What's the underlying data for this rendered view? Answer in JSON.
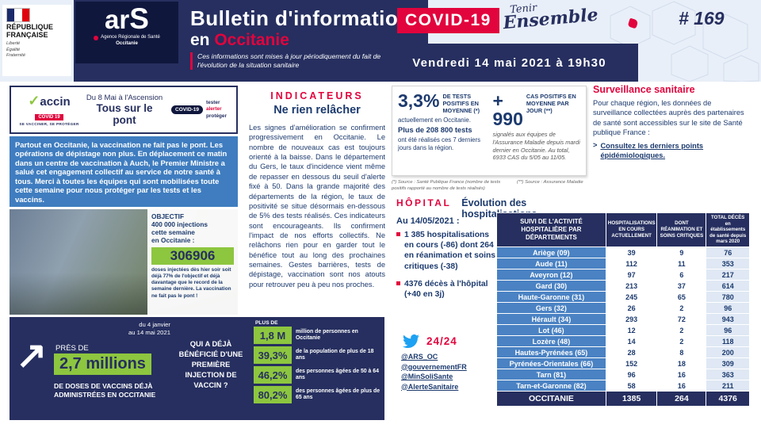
{
  "colors": {
    "navy": "#262f5f",
    "navy-text": "#1c3a6e",
    "red": "#e2043d",
    "green": "#8dc63f",
    "blue": "#3f7dc0",
    "table-blue": "#4a82c3",
    "light-blue": "#e9eff8",
    "twitter-blue": "#1da1f2"
  },
  "icons": {
    "trend_arrow": "↗",
    "check": "✓",
    "link_chevron": ">"
  },
  "header": {
    "republique": {
      "line1": "RÉPUBLIQUE",
      "line2": "FRANÇAISE",
      "motto": "Liberté\nÉgalité\nFraternité"
    },
    "ars": {
      "word_prefix": "ar",
      "word_s": "S",
      "agency": "Agence Régionale de Santé",
      "region": "Occitanie"
    },
    "title": "Bulletin d'information",
    "covid_chip": "COVID-19",
    "tenir_line1": "Tenir",
    "tenir_line2": "Ensemble",
    "en": "en ",
    "region": "Occitanie",
    "subtitle": "Ces informations sont mises à jour périodiquement du fait de l'évolution de la situation sanitaire",
    "issue": "# 169",
    "date": "Vendredi 14 mai 2021 à 19h30"
  },
  "vaccine_banner": {
    "word": "accin",
    "covid_tag": "COVID 19",
    "caption": "SE VACCINER, SE PROTÉGER",
    "line1": "Du 8 Mai à l'Ascension",
    "line2": "Tous sur le pont",
    "badge_pill": "COVID-19",
    "badge_words": [
      "tester",
      "alerter",
      "protéger"
    ]
  },
  "blue_message": "Partout en Occitanie, la vaccination ne fait pas le pont. Les opérations de dépistage non plus. En déplacement ce matin dans un centre de vaccination à Auch, le Premier Ministre a salué cet engagement collectif au service de notre santé à tous. Merci à toutes les équipes qui sont mobilisées toute cette semaine pour nous protéger par les tests et les vaccins.",
  "photo_overlay": {
    "objective": "OBJECTIF\n400 000 injections\ncette semaine\nen Occitanie :",
    "number": "306906",
    "caption": "doses injectées dès hier soir soit déjà 77% de l'objectif et déjà davantage que le record de la semaine dernière. La vaccination ne fait pas le pont !"
  },
  "doses_panel": {
    "period": "du 4 janvier\nau 14 mai 2021",
    "pres_de": "PRÈS DE",
    "big_number": "2,7 millions",
    "caption": "DE DOSES DE VACCINS DÉJÀ ADMINISTRÉES EN OCCITANIE",
    "question": "QUI A DÉJÀ BÉNÉFICIÉ D'UNE PREMIÈRE INJECTION DE VACCIN ?",
    "stats": [
      {
        "prefix": "PLUS DE",
        "value": "1,8 M",
        "label": "million de personnes en Occitanie"
      },
      {
        "value": "39,3%",
        "label": "de la population de plus de 18 ans"
      },
      {
        "value": "46,2%",
        "label": "des personnes âgées de 50 à 64 ans"
      },
      {
        "value": "80,2%",
        "label": "des personnes âgées de plus de 65 ans"
      }
    ]
  },
  "indicateurs": {
    "title": "INDICATEURS",
    "subtitle": "Ne rien relâcher",
    "body": "Les signes d'amélioration se confirment progressivement en Occitanie. Le nombre de nouveaux cas est toujours orienté à la baisse. Dans le département du Gers, le taux d'incidence vient même de repasser en dessous du seuil d'alerte fixé à 50. Dans la grande majorité des départements de la région, le taux de positivité se situe désormais en-dessous de 5% des tests réalisés. Ces indicateurs sont encourageants. Ils confirment l'impact de nos efforts collectifs. Ne relâchons rien pour en garder tout le bénéfice tout au long des prochaines semaines. Gestes barrières, tests de dépistage, vaccination sont nos atouts pour retrouver peu à peu nos proches."
  },
  "tests_box": {
    "left_value": "3,3%",
    "left_label": "DE TESTS POSITIFS EN MOYENNE (*)",
    "left_line1": "actuellement en Occitanie.",
    "left_line2": "Plus de 208 800 tests",
    "left_line3": "ont été réalisés ces 7 derniers jours dans la région.",
    "right_value": "+ 990",
    "right_label": "CAS POSITIFS EN MOYENNE PAR JOUR (**)",
    "right_text": "signalés aux équipes de l'Assurance Maladie depuis mardi dernier en Occitanie. Au total, 6933 CAS du 5/05 au 11/05.",
    "footnote_left": "(*) Source : Santé Publique France (nombre de tests positifs rapporté au nombre de tests réalisés)",
    "footnote_right": "(**) Source : Assurance Maladie"
  },
  "hopital": {
    "title": "HÔPITAL",
    "subtitle": "Évolution des hospitalisations",
    "date_label": "Au 14/05/2021 :",
    "bullet1": "1 385 hospitalisations en cours (-86) dont 264 en réanimation et soins critiques (-38)",
    "bullet2": "4376 décès à l'hôpital (+40 en 3j)"
  },
  "twitter": {
    "label": "24/24",
    "handles": [
      "@ARS_OC",
      "@gouvernementFR",
      "@MinSoliSante",
      "@AlerteSanitaire"
    ]
  },
  "surveillance": {
    "title": "Surveillance sanitaire",
    "body": "Pour chaque région, les données de surveillance collectées auprès des partenaires de santé sont accessibles sur le site de Santé publique France :",
    "link_text": "Consultez les derniers points épidémiologiques."
  },
  "table": {
    "headers": [
      "SUIVI DE L'ACTIVITÉ HOSPITALIÈRE PAR DÉPARTEMENTS",
      "HOSPITALISATIONS EN COURS ACTUELLEMENT",
      "DONT RÉANIMATION ET SOINS CRITIQUES",
      "TOTAL DÉCÈS en établissements de santé depuis mars 2020"
    ],
    "rows": [
      {
        "name": "Ariège (09)",
        "values": [
          39,
          9,
          76
        ]
      },
      {
        "name": "Aude (11)",
        "values": [
          112,
          11,
          353
        ]
      },
      {
        "name": "Aveyron (12)",
        "values": [
          97,
          6,
          217
        ]
      },
      {
        "name": "Gard (30)",
        "values": [
          213,
          37,
          614
        ]
      },
      {
        "name": "Haute-Garonne (31)",
        "values": [
          245,
          65,
          780
        ]
      },
      {
        "name": "Gers (32)",
        "values": [
          26,
          2,
          96
        ]
      },
      {
        "name": "Hérault (34)",
        "values": [
          293,
          72,
          943
        ]
      },
      {
        "name": "Lot (46)",
        "values": [
          12,
          2,
          96
        ]
      },
      {
        "name": "Lozère (48)",
        "values": [
          14,
          2,
          118
        ]
      },
      {
        "name": "Hautes-Pyrénées (65)",
        "values": [
          28,
          8,
          200
        ]
      },
      {
        "name": "Pyrénées-Orientales (66)",
        "values": [
          152,
          18,
          309
        ]
      },
      {
        "name": "Tarn (81)",
        "values": [
          96,
          16,
          363
        ]
      },
      {
        "name": "Tarn-et-Garonne (82)",
        "values": [
          58,
          16,
          211
        ]
      }
    ],
    "total": {
      "name": "OCCITANIE",
      "values": [
        1385,
        264,
        4376
      ]
    }
  }
}
